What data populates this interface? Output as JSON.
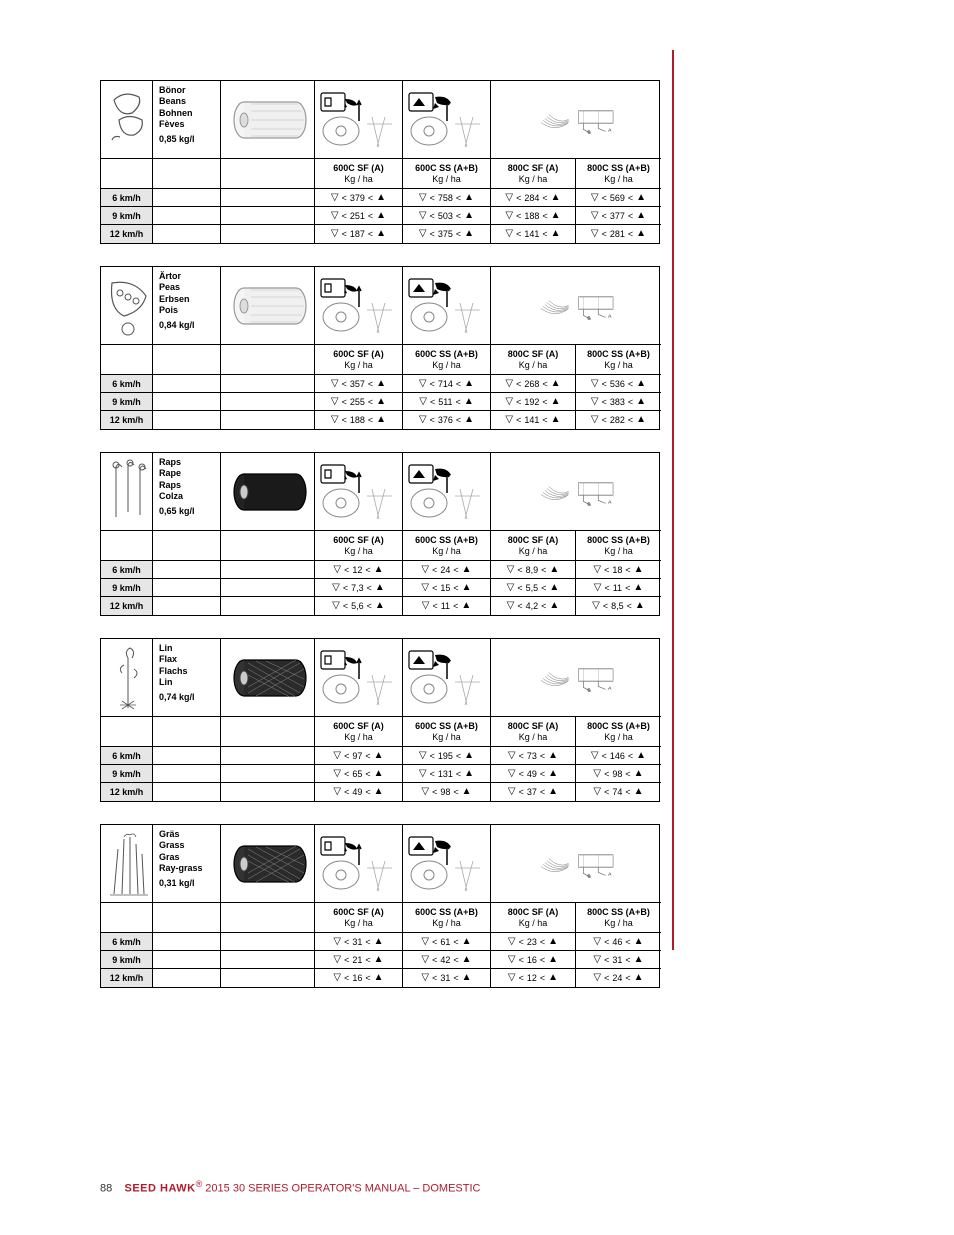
{
  "page": {
    "number": "88",
    "brand": "SEED HAWK",
    "registered": "®",
    "tail": " 2015 30 SERIES OPERATOR'S MANUAL – DOMESTIC"
  },
  "accent_color": "#b01c2e",
  "grey_bg": "#e6e6e6",
  "symbols": {
    "down_tri": "▽",
    "lt": "<",
    "up_tri": "▲"
  },
  "model_header": {
    "c1": {
      "top": "600C SF (A)",
      "bot": "Kg / ha"
    },
    "c2": {
      "top": "600C SS (A+B)",
      "bot": "Kg / ha"
    },
    "c3": {
      "top": "800C SF (A)",
      "bot": "Kg / ha"
    },
    "c4": {
      "top": "800C SS (A+B)",
      "bot": "Kg / ha"
    }
  },
  "hose_labels": {
    "a": "A",
    "b": "B"
  },
  "blocks": [
    {
      "id": "beans",
      "names": [
        "Bönor",
        "Beans",
        "Bohnen",
        "Fèves"
      ],
      "density": "0,85 kg/l",
      "roller": "plain",
      "rows": [
        {
          "speed": "6 km/h",
          "v": [
            "379",
            "758",
            "284",
            "569"
          ]
        },
        {
          "speed": "9 km/h",
          "v": [
            "251",
            "503",
            "188",
            "377"
          ]
        },
        {
          "speed": "12 km/h",
          "v": [
            "187",
            "375",
            "141",
            "281"
          ]
        }
      ]
    },
    {
      "id": "peas",
      "names": [
        "Ärtor",
        "Peas",
        "Erbsen",
        "Pois"
      ],
      "density": "0,84 kg/l",
      "roller": "plain",
      "rows": [
        {
          "speed": "6 km/h",
          "v": [
            "357",
            "714",
            "268",
            "536"
          ]
        },
        {
          "speed": "9 km/h",
          "v": [
            "255",
            "511",
            "192",
            "383"
          ]
        },
        {
          "speed": "12 km/h",
          "v": [
            "188",
            "376",
            "141",
            "282"
          ]
        }
      ]
    },
    {
      "id": "raps",
      "names": [
        "Raps",
        "Rape",
        "Raps",
        "Colza"
      ],
      "density": "0,65 kg/l",
      "roller": "dark",
      "rows": [
        {
          "speed": "6 km/h",
          "v": [
            "12",
            "24",
            "8,9",
            "18"
          ]
        },
        {
          "speed": "9 km/h",
          "v": [
            "7,3",
            "15",
            "5,5",
            "11"
          ]
        },
        {
          "speed": "12 km/h",
          "v": [
            "5,6",
            "11",
            "4,2",
            "8,5"
          ]
        }
      ]
    },
    {
      "id": "flax",
      "names": [
        "Lin",
        "Flax",
        "Flachs",
        "Lin"
      ],
      "density": "0,74 kg/l",
      "roller": "mesh",
      "rows": [
        {
          "speed": "6 km/h",
          "v": [
            "97",
            "195",
            "73",
            "146"
          ]
        },
        {
          "speed": "9 km/h",
          "v": [
            "65",
            "131",
            "49",
            "98"
          ]
        },
        {
          "speed": "12 km/h",
          "v": [
            "49",
            "98",
            "37",
            "74"
          ]
        }
      ]
    },
    {
      "id": "grass",
      "names": [
        "Gräs",
        "Grass",
        "Gras",
        "Ray-grass"
      ],
      "density": "0,31 kg/l",
      "roller": "mesh",
      "rows": [
        {
          "speed": "6 km/h",
          "v": [
            "31",
            "61",
            "23",
            "46"
          ]
        },
        {
          "speed": "9 km/h",
          "v": [
            "21",
            "42",
            "16",
            "31"
          ]
        },
        {
          "speed": "12 km/h",
          "v": [
            "16",
            "31",
            "12",
            "24"
          ]
        }
      ]
    }
  ]
}
